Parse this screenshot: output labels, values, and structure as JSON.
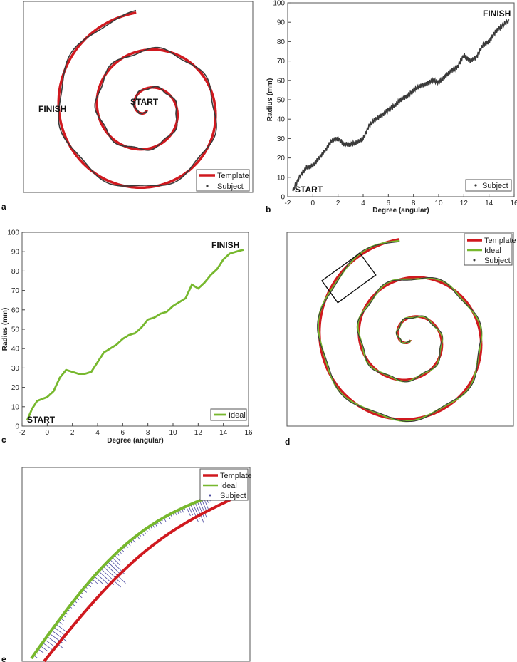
{
  "colors": {
    "template": "#d0191f",
    "ideal": "#77b82e",
    "subject": "#3a3a3a",
    "error": "#4a4aa0"
  },
  "chart_data": [
    {
      "panel": "a",
      "type": "line",
      "annotations": [
        "START",
        "FINISH"
      ],
      "legend": {
        "position": "bottom-right",
        "entries": [
          "Template",
          "Subject"
        ]
      },
      "series": [
        {
          "name": "Template",
          "kind": "spiral"
        },
        {
          "name": "Subject",
          "kind": "spiral-tremor"
        }
      ]
    },
    {
      "panel": "b",
      "type": "line",
      "xlabel": "Degree (angular)",
      "ylabel": "Radius (mm)",
      "xlim": [
        -2,
        16
      ],
      "ylim": [
        0,
        100
      ],
      "xticks": [
        "-2",
        "0",
        "2",
        "4",
        "6",
        "8",
        "10",
        "12",
        "14",
        "16"
      ],
      "yticks": [
        "0",
        "10",
        "20",
        "30",
        "40",
        "50",
        "60",
        "70",
        "80",
        "90",
        "100"
      ],
      "annotations": [
        "START",
        "FINISH"
      ],
      "legend": {
        "position": "bottom-right",
        "entries": [
          "Subject"
        ]
      },
      "series": [
        {
          "name": "Subject",
          "x": [
            -1.6,
            -1.0,
            -0.5,
            0.0,
            0.5,
            1.0,
            1.5,
            2.0,
            2.5,
            3.0,
            3.5,
            4.0,
            4.5,
            5.0,
            5.5,
            6.0,
            6.5,
            7.0,
            7.5,
            8.0,
            8.5,
            9.0,
            9.5,
            10.0,
            10.5,
            11.0,
            11.5,
            12.0,
            12.5,
            13.0,
            13.5,
            14.0,
            14.5,
            15.0,
            15.6
          ],
          "y": [
            3,
            11,
            15,
            16,
            20,
            24,
            29,
            30,
            27,
            27,
            28,
            30,
            37,
            40,
            42,
            45,
            47,
            50,
            52,
            55,
            57,
            58,
            60,
            59,
            62,
            65,
            67,
            73,
            70,
            72,
            78,
            80,
            85,
            88,
            91
          ]
        }
      ]
    },
    {
      "panel": "c",
      "type": "line",
      "xlabel": "Degree (angular)",
      "ylabel": "Radius (mm)",
      "xlim": [
        -2,
        16
      ],
      "ylim": [
        0,
        100
      ],
      "xticks": [
        "-2",
        "0",
        "2",
        "4",
        "6",
        "8",
        "10",
        "12",
        "14",
        "16"
      ],
      "yticks": [
        "0",
        "10",
        "20",
        "30",
        "40",
        "50",
        "60",
        "70",
        "80",
        "90",
        "100"
      ],
      "annotations": [
        "START",
        "FINISH"
      ],
      "legend": {
        "position": "bottom-right",
        "entries": [
          "Ideal"
        ]
      },
      "series": [
        {
          "name": "Ideal",
          "x": [
            -1.6,
            -1.2,
            -0.8,
            -0.4,
            0.0,
            0.5,
            1.0,
            1.5,
            2.0,
            2.5,
            3.0,
            3.5,
            4.0,
            4.5,
            5.0,
            5.5,
            6.0,
            6.5,
            7.0,
            7.5,
            8.0,
            8.5,
            9.0,
            9.5,
            10.0,
            10.5,
            11.0,
            11.5,
            12.0,
            12.5,
            13.0,
            13.5,
            14.0,
            14.5,
            15.0,
            15.6
          ],
          "y": [
            3,
            9,
            13,
            14,
            15,
            18,
            25,
            29,
            28,
            27,
            27,
            28,
            33,
            38,
            40,
            42,
            45,
            47,
            48,
            51,
            55,
            56,
            58,
            59,
            62,
            64,
            66,
            73,
            71,
            74,
            78,
            81,
            86,
            89,
            90,
            91
          ]
        }
      ]
    },
    {
      "panel": "d",
      "type": "line",
      "legend": {
        "position": "top-right",
        "entries": [
          "Template",
          "Ideal",
          "Subject"
        ]
      },
      "series": [
        {
          "name": "Template",
          "kind": "spiral"
        },
        {
          "name": "Ideal",
          "kind": "spiral-tremor"
        },
        {
          "name": "Subject",
          "kind": "spiral-tremor"
        }
      ]
    },
    {
      "panel": "e",
      "type": "line",
      "legend": {
        "position": "top-right",
        "entries": [
          "Template",
          "Ideal",
          "Subject"
        ]
      },
      "series": [
        {
          "name": "Template",
          "kind": "arc"
        },
        {
          "name": "Ideal",
          "kind": "arc-offset"
        },
        {
          "name": "Subject",
          "kind": "error-vectors"
        }
      ]
    }
  ]
}
